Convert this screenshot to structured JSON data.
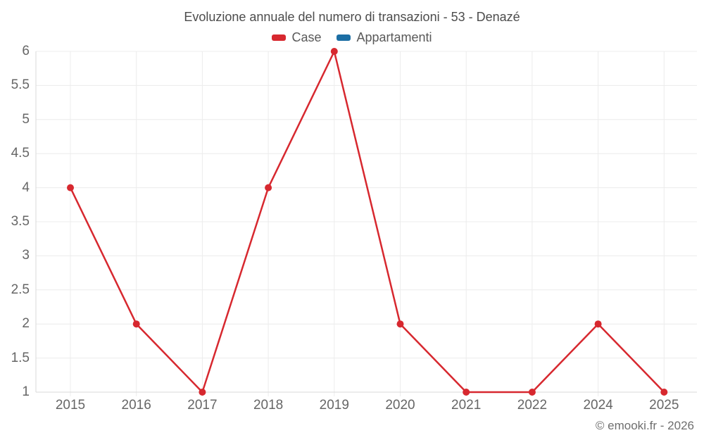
{
  "title": "Evoluzione annuale del numero di transazioni - 53 - Denazé",
  "watermark": "© emooki.fr - 2026",
  "legend": [
    {
      "label": "Case",
      "color": "#d7282f"
    },
    {
      "label": "Appartamenti",
      "color": "#1c6ea4"
    }
  ],
  "chart_data": {
    "type": "line",
    "title": "Evoluzione annuale del numero di transazioni - 53 - Denazé",
    "categories": [
      "2015",
      "2016",
      "2017",
      "2018",
      "2019",
      "2020",
      "2021",
      "2022",
      "2024",
      "2025"
    ],
    "series": [
      {
        "name": "Case",
        "color": "#d7282f",
        "values": [
          4,
          2,
          1,
          4,
          6,
          2,
          1,
          1,
          2,
          1
        ]
      },
      {
        "name": "Appartamenti",
        "color": "#1c6ea4",
        "values": []
      }
    ],
    "xlabel": "",
    "ylabel": "",
    "ylim": [
      1,
      6
    ],
    "yticks": [
      1,
      1.5,
      2,
      2.5,
      3,
      3.5,
      4,
      4.5,
      5,
      5.5,
      6
    ],
    "grid": true,
    "legend_position": "top"
  },
  "colors": {
    "grid": "#ececec",
    "axis": "#d9d9d9",
    "tick_label": "#666666",
    "title": "#4c4c4c",
    "watermark": "#6e6e6e",
    "background": "#ffffff"
  }
}
